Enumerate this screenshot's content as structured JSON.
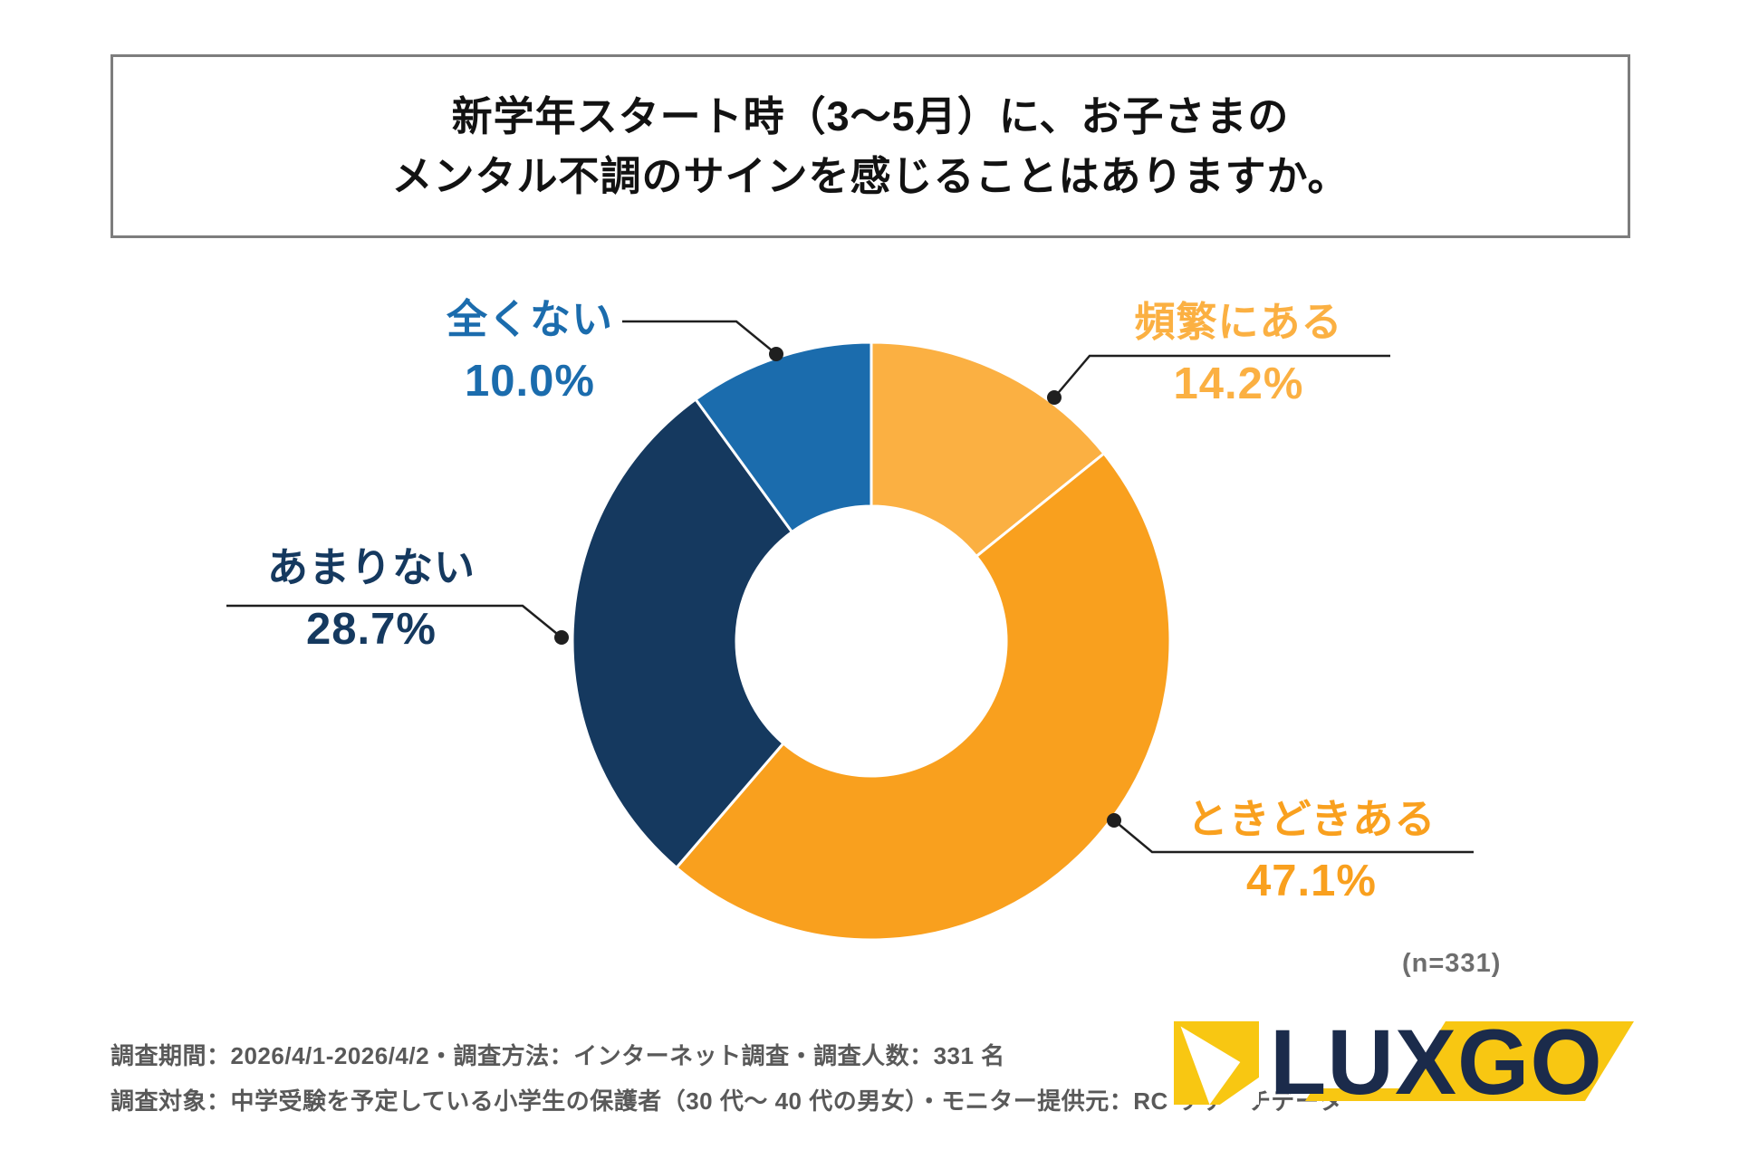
{
  "title": {
    "line1": "新学年スタート時（3〜5月）に、お子さまの",
    "line2": "メンタル不調のサインを感じることはありますか。"
  },
  "chart_data": {
    "type": "pie",
    "subtype": "donut",
    "title": "新学年スタート時（3〜5月）に、お子さまのメンタル不調のサインを感じることはありますか。",
    "direction": "clockwise",
    "start_angle": "top",
    "inner_radius_ratio": 0.45,
    "legend_position": "callouts",
    "sample_size_label": "(n=331)",
    "sample_size": 331,
    "segments": [
      {
        "key": "frequently",
        "label": "頻繁にある",
        "value_pct": 14.2,
        "display": "14.2%",
        "color": "#FBB042"
      },
      {
        "key": "sometimes",
        "label": "ときどきある",
        "value_pct": 47.1,
        "display": "47.1%",
        "color": "#F9A01E"
      },
      {
        "key": "rarely",
        "label": "あまりない",
        "value_pct": 28.7,
        "display": "28.7%",
        "color": "#15395F"
      },
      {
        "key": "never",
        "label": "全くない",
        "value_pct": 10.0,
        "display": "10.0%",
        "color": "#1B6CAD"
      }
    ]
  },
  "footnote": {
    "line1": "調査期間：2026/4/1-2026/4/2・調査方法：インターネット調査・調査人数：331 名",
    "line2": "調査対象：中学受験を予定している小学生の保護者（30 代〜 40 代の男女）・モニター提供元：RC リサーチデータ"
  },
  "logo": {
    "text": "LUXGO",
    "navy": "#1B2B4B",
    "yellow": "#F8C712"
  },
  "style": {
    "leader_line_color": "#1f1f1f",
    "title_border_color": "#7d7d7d"
  }
}
